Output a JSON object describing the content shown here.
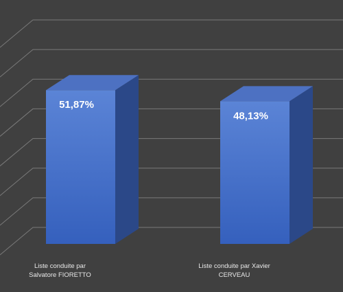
{
  "chart_data": {
    "type": "bar3d",
    "categories": [
      "Liste conduite par Salvatore FIORETTO",
      "Liste conduite par Xavier CERVEAU"
    ],
    "values": [
      51.87,
      48.13
    ],
    "value_labels": [
      "51,87%",
      "48,13%"
    ],
    "color": "#4a72c8",
    "ylim": [
      0,
      70
    ],
    "yticks": [
      0,
      10,
      20,
      30,
      40,
      50,
      60,
      70
    ],
    "grid": true
  }
}
